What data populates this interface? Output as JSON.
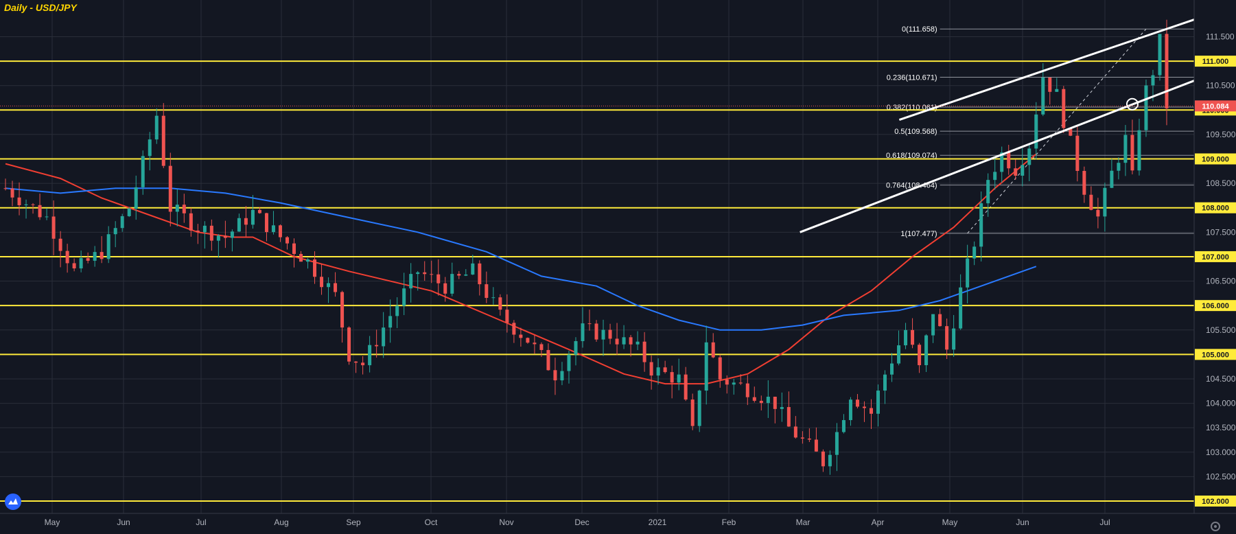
{
  "header": {
    "title": "Daily - USD/JPY"
  },
  "colors": {
    "background": "#131722",
    "grid": "#2a2e39",
    "up": "#26a69a",
    "down": "#ef5350",
    "level": "#ffeb3b",
    "ma_fast": "#f23f32",
    "ma_slow": "#2979ff",
    "channel": "#ffffff",
    "axis_text": "#b2b5be",
    "price_badge": "#ef5350"
  },
  "logo": {
    "icon": "tradingview-logo-icon"
  },
  "settings": {
    "icon": "gear-icon"
  },
  "chart_data": {
    "type": "candlestick",
    "title": "Daily - USD/JPY",
    "ylim": [
      102.0,
      111.9
    ],
    "grid": true,
    "y_ticks": [
      "111.500",
      "111.000",
      "110.500",
      "110.000",
      "109.500",
      "109.000",
      "108.500",
      "108.000",
      "107.500",
      "107.000",
      "106.500",
      "106.000",
      "105.500",
      "105.000",
      "104.500",
      "104.000",
      "103.500",
      "103.000",
      "102.500",
      "102.000"
    ],
    "x_ticks": [
      "May",
      "Jun",
      "Jul",
      "Aug",
      "Sep",
      "Oct",
      "Nov",
      "Dec",
      "2021",
      "Feb",
      "Mar",
      "Apr",
      "May",
      "Jun",
      "Jul"
    ],
    "last_price": "110.084",
    "horizontal_levels": [
      {
        "value": 111.0,
        "label": "111.000"
      },
      {
        "value": 110.0,
        "label": "110.000"
      },
      {
        "value": 109.0,
        "label": "109.000"
      },
      {
        "value": 108.0,
        "label": "108.000"
      },
      {
        "value": 107.0,
        "label": "107.000"
      },
      {
        "value": 106.0,
        "label": "106.000"
      },
      {
        "value": 105.0,
        "label": "105.000"
      },
      {
        "value": 102.0,
        "label": "102.000"
      }
    ],
    "fibonacci": [
      {
        "label": "0(111.658)",
        "value": 111.658
      },
      {
        "label": "0.236(110.671)",
        "value": 110.671
      },
      {
        "label": "0.382(110.061)",
        "value": 110.061
      },
      {
        "label": "0.5(109.568)",
        "value": 109.568
      },
      {
        "label": "0.618(109.074)",
        "value": 109.074
      },
      {
        "label": "0.764(108.464)",
        "value": 108.464
      },
      {
        "label": "1(107.477)",
        "value": 107.477
      }
    ],
    "channel": {
      "upper": [
        [
          117,
          109.8
        ],
        [
          150,
          111.85
        ]
      ],
      "lower": [
        [
          104,
          107.5
        ],
        [
          152,
          110.6
        ]
      ]
    },
    "moving_averages": [
      {
        "points": [
          [
            0,
            108.9
          ],
          [
            8,
            108.6
          ],
          [
            14,
            108.2
          ],
          [
            22,
            107.8
          ],
          [
            28,
            107.5
          ],
          [
            33,
            107.4
          ],
          [
            36,
            107.4
          ],
          [
            42,
            107.0
          ],
          [
            50,
            106.7
          ],
          [
            62,
            106.3
          ],
          [
            72,
            105.7
          ],
          [
            82,
            105.1
          ],
          [
            90,
            104.6
          ],
          [
            96,
            104.4
          ],
          [
            102,
            104.4
          ],
          [
            108,
            104.6
          ],
          [
            114,
            105.1
          ],
          [
            120,
            105.8
          ],
          [
            126,
            106.3
          ],
          [
            132,
            107.0
          ],
          [
            138,
            107.6
          ],
          [
            144,
            108.4
          ],
          [
            150,
            109.1
          ]
        ]
      },
      {
        "points": [
          [
            0,
            108.4
          ],
          [
            8,
            108.3
          ],
          [
            16,
            108.4
          ],
          [
            24,
            108.4
          ],
          [
            32,
            108.3
          ],
          [
            40,
            108.1
          ],
          [
            50,
            107.8
          ],
          [
            60,
            107.5
          ],
          [
            70,
            107.1
          ],
          [
            78,
            106.6
          ],
          [
            86,
            106.4
          ],
          [
            92,
            106.0
          ],
          [
            98,
            105.7
          ],
          [
            104,
            105.5
          ],
          [
            110,
            105.5
          ],
          [
            116,
            105.6
          ],
          [
            122,
            105.8
          ],
          [
            130,
            105.9
          ],
          [
            136,
            106.1
          ],
          [
            142,
            106.4
          ],
          [
            150,
            106.8
          ]
        ]
      }
    ]
  }
}
